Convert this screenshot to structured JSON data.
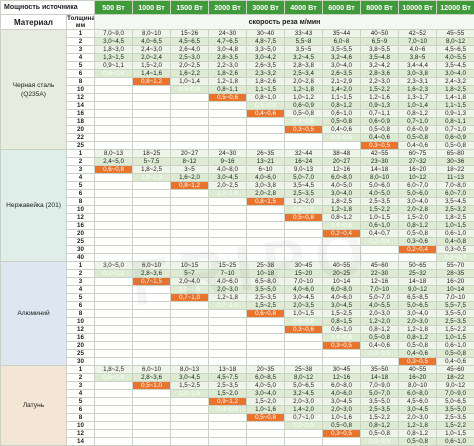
{
  "header": {
    "source_label": "Мощность источника",
    "material_label": "Материал",
    "thickness_label": "Толщина, мм",
    "speed_label": "скорость реза м/мин",
    "powers": [
      "500 Вт",
      "1000 Вт",
      "1500 Вт",
      "2000 Вт",
      "3000 Вт",
      "4000 Вт",
      "6000 Вт",
      "8000 Вт",
      "10000 Вт",
      "12000 Вт"
    ]
  },
  "groups": [
    {
      "material": "Черная сталь (Q235A)",
      "bg": "#e8ecdf",
      "rows": [
        {
          "t": "1",
          "v": [
            "7,0~9,0",
            "8,0~10",
            "15~26",
            "24~30",
            "30~40",
            "33~43",
            "35~44",
            "40~50",
            "42~52",
            "45~55"
          ],
          "h": []
        },
        {
          "t": "2",
          "v": [
            "3,0~4,5",
            "4,0~6,5",
            "4,5~6,5",
            "4,7~6,5",
            "4,8~7,5",
            "5,5~8",
            "6,0~8",
            "6,5~9",
            "7,0~10",
            "8,0~12"
          ],
          "h": []
        },
        {
          "t": "3",
          "v": [
            "1,8~3,0",
            "2,4~3,0",
            "2,6~4,0",
            "3,0~4,8",
            "3,3~5,0",
            "3,5~5",
            "3,5~5,5",
            "3,8~5,5",
            "4,0~6",
            "4,5~6,5"
          ],
          "h": []
        },
        {
          "t": "4",
          "v": [
            "1,3~1,5",
            "2,0~2,4",
            "2,5~3,0",
            "2,8~3,5",
            "3,0~4,2",
            "3,2~4,5",
            "3,2~4,6",
            "3,5~4,8",
            "3,8~5",
            "4,0~5,5"
          ],
          "h": []
        },
        {
          "t": "5",
          "v": [
            "0,9~1,1",
            "1,5~2,0",
            "2,0~2,5",
            "2,2~3,0",
            "2,6~3,5",
            "2,8~3,8",
            "3,0~4,0",
            "3,2~4,2",
            "3,4~4,4",
            "3,5~4,5"
          ],
          "h": []
        },
        {
          "t": "6",
          "v": [
            "0,6~0,8",
            "1,4~1,6",
            "1,6~2,2",
            "1,8~2,6",
            "2,3~3,2",
            "2,5~3,4",
            "2,6~3,5",
            "2,8~3,6",
            "3,0~3,8",
            "3,0~4,0"
          ],
          "h": [
            0
          ]
        },
        {
          "t": "8",
          "v": [
            "",
            "0,8~1,2",
            "1,0~1,4",
            "1,2~1,8",
            "1,8~2,6",
            "2,0~2,8",
            "2,1~2,9",
            "2,2~3,0",
            "2,3~3,1",
            "2,4~3,2"
          ],
          "h": [
            1
          ]
        },
        {
          "t": "10",
          "v": [
            "",
            "",
            "0,5~0,8",
            "0,8~1,1",
            "1,1~1,5",
            "1,2~1,8",
            "1,4~2,0",
            "1,5~2,2",
            "1,6~2,3",
            "1,8~2,5"
          ],
          "h": [
            2
          ]
        },
        {
          "t": "12",
          "v": [
            "",
            "",
            "",
            "0,5~0,6",
            "0,8~1,0",
            "1,0~1,2",
            "1,1~1,5",
            "1,2~1,6",
            "1,3~1,7",
            "1,4~1,8"
          ],
          "h": [
            3
          ]
        },
        {
          "t": "14",
          "v": [
            "",
            "",
            "",
            "",
            "0,5~0,8",
            "0,6~0,9",
            "0,8~1,2",
            "0,9~1,3",
            "1,0~1,4",
            "1,1~1,5"
          ],
          "h": [
            4
          ]
        },
        {
          "t": "16",
          "v": [
            "",
            "",
            "",
            "",
            "0,4~0,6",
            "0,5~0,8",
            "0,6~1,0",
            "0,7~1,1",
            "0,8~1,2",
            "0,9~1,3"
          ],
          "h": [
            4
          ]
        },
        {
          "t": "18",
          "v": [
            "",
            "",
            "",
            "",
            "",
            "0,4~0,6",
            "0,5~0,8",
            "0,6~0,9",
            "0,7~1,0",
            "0,8~1,1"
          ],
          "h": [
            5
          ]
        },
        {
          "t": "20",
          "v": [
            "",
            "",
            "",
            "",
            "",
            "0,3~0,5",
            "0,4~0,6",
            "0,5~0,8",
            "0,6~0,9",
            "0,7~1,0"
          ],
          "h": [
            5
          ]
        },
        {
          "t": "22",
          "v": [
            "",
            "",
            "",
            "",
            "",
            "",
            "0,3~0,5",
            "0,4~0,6",
            "0,5~0,8",
            "0,6~0,9"
          ],
          "h": [
            6
          ]
        },
        {
          "t": "25",
          "v": [
            "",
            "",
            "",
            "",
            "",
            "",
            "",
            "0,3~0,5",
            "0,4~0,6",
            "0,5~0,8"
          ],
          "h": [
            7
          ]
        }
      ]
    },
    {
      "material": "Нержавейка (201)",
      "bg": "#dfeee9",
      "rows": [
        {
          "t": "1",
          "v": [
            "8,0~13",
            "18~25",
            "20~27",
            "24~30",
            "26~35",
            "32~44",
            "38~48",
            "42~55",
            "60~75",
            "65~80"
          ],
          "h": []
        },
        {
          "t": "2",
          "v": [
            "2,4~5,0",
            "5~7,5",
            "8~12",
            "9~16",
            "13~21",
            "16~24",
            "20~27",
            "23~30",
            "27~32",
            "30~36"
          ],
          "h": []
        },
        {
          "t": "3",
          "v": [
            "0,6~0,8",
            "1,8~2,5",
            "3~5",
            "4,0~8,0",
            "6~10",
            "9,0~13",
            "12~16",
            "14~18",
            "16~20",
            "18~22"
          ],
          "h": [
            0
          ]
        },
        {
          "t": "4",
          "v": [
            "",
            "1,0~1,3",
            "1,6~2,0",
            "3,0~4,5",
            "4,0~6,0",
            "5,0~7,0",
            "6,0~8,0",
            "8,0~10",
            "10~12",
            "11~13"
          ],
          "h": [
            1
          ]
        },
        {
          "t": "5",
          "v": [
            "",
            "",
            "0,8~1,2",
            "2,0~2,5",
            "3,0~3,8",
            "3,5~4,5",
            "4,0~5,0",
            "5,0~6,0",
            "6,0~7,0",
            "7,0~8,0"
          ],
          "h": [
            2
          ]
        },
        {
          "t": "6",
          "v": [
            "",
            "",
            "",
            "1,2~1,8",
            "2,0~2,8",
            "2,5~3,5",
            "3,0~4,0",
            "4,0~5,0",
            "5,0~6,0",
            "6,0~7,0"
          ],
          "h": [
            3
          ]
        },
        {
          "t": "8",
          "v": [
            "",
            "",
            "",
            "",
            "0,8~1,5",
            "1,2~2,0",
            "1,8~2,5",
            "2,5~3,5",
            "3,0~4,0",
            "3,5~4,5"
          ],
          "h": [
            4
          ]
        },
        {
          "t": "10",
          "v": [
            "",
            "",
            "",
            "",
            "",
            "0,8~1,2",
            "1,2~1,8",
            "1,5~2,2",
            "2,0~2,8",
            "2,5~3,2"
          ],
          "h": [
            5
          ]
        },
        {
          "t": "12",
          "v": [
            "",
            "",
            "",
            "",
            "",
            "0,5~0,8",
            "0,8~1,2",
            "1,0~1,5",
            "1,5~2,0",
            "1,8~2,5"
          ],
          "h": [
            5
          ]
        },
        {
          "t": "16",
          "v": [
            "",
            "",
            "",
            "",
            "",
            "",
            "0,4~0,6",
            "0,6~1,0",
            "0,8~1,2",
            "1,0~1,5"
          ],
          "h": [
            6
          ]
        },
        {
          "t": "20",
          "v": [
            "",
            "",
            "",
            "",
            "",
            "",
            "0,2~0,4",
            "0,4~0,7",
            "0,5~0,8",
            "0,6~1,0"
          ],
          "h": [
            6
          ]
        },
        {
          "t": "25",
          "v": [
            "",
            "",
            "",
            "",
            "",
            "",
            "",
            "0,2~0,4",
            "0,3~0,6",
            "0,4~0,8"
          ],
          "h": [
            7
          ]
        },
        {
          "t": "30",
          "v": [
            "",
            "",
            "",
            "",
            "",
            "",
            "",
            "",
            "0,2~0,4",
            "0,3~0,5"
          ],
          "h": [
            8
          ]
        },
        {
          "t": "40",
          "v": [
            "",
            "",
            "",
            "",
            "",
            "",
            "",
            "",
            "",
            "0,2~0,4"
          ],
          "h": [
            9
          ]
        }
      ]
    },
    {
      "material": "Алюминий",
      "bg": "#dde6f1",
      "rows": [
        {
          "t": "1",
          "v": [
            "3,0~5,0",
            "6,0~10",
            "10~15",
            "15~25",
            "25~38",
            "30~45",
            "40~55",
            "45~60",
            "50~65",
            "55~70"
          ],
          "h": []
        },
        {
          "t": "2",
          "v": [
            "0,7~1,2",
            "2,8~3,6",
            "5~7",
            "7~10",
            "10~18",
            "15~20",
            "20~25",
            "22~30",
            "25~32",
            "28~35"
          ],
          "h": [
            0
          ]
        },
        {
          "t": "3",
          "v": [
            "",
            "0,7~1,5",
            "2,0~4,0",
            "4,0~6,0",
            "6,5~8,0",
            "7,0~10",
            "10~14",
            "12~16",
            "14~18",
            "16~20"
          ],
          "h": [
            1
          ]
        },
        {
          "t": "4",
          "v": [
            "",
            "",
            "1,0~1,5",
            "2,0~3,0",
            "3,5~5,0",
            "4,0~6,0",
            "6,0~8,0",
            "7,0~10",
            "9,0~12",
            "10~14"
          ],
          "h": [
            2
          ]
        },
        {
          "t": "5",
          "v": [
            "",
            "",
            "0,7~1,0",
            "1,2~1,8",
            "2,5~3,5",
            "3,0~4,5",
            "4,0~6,0",
            "5,0~7,0",
            "6,5~8,5",
            "7,0~10"
          ],
          "h": [
            2
          ]
        },
        {
          "t": "6",
          "v": [
            "",
            "",
            "",
            "0,7~1,0",
            "1,5~2,5",
            "2,0~3,5",
            "3,0~4,5",
            "4,0~5,5",
            "5,0~6,5",
            "5,5~7,5"
          ],
          "h": [
            3
          ]
        },
        {
          "t": "8",
          "v": [
            "",
            "",
            "",
            "",
            "0,6~0,8",
            "1,0~1,5",
            "1,5~2,5",
            "2,0~3,0",
            "3,0~4,0",
            "3,5~5,0"
          ],
          "h": [
            4
          ]
        },
        {
          "t": "10",
          "v": [
            "",
            "",
            "",
            "",
            "",
            "0,6~0,8",
            "0,8~1,5",
            "1,2~2,0",
            "2,0~3,0",
            "2,5~3,5"
          ],
          "h": [
            5
          ]
        },
        {
          "t": "12",
          "v": [
            "",
            "",
            "",
            "",
            "",
            "0,3~0,6",
            "0,6~1,0",
            "0,8~1,2",
            "1,2~1,8",
            "1,5~2,2"
          ],
          "h": [
            5
          ]
        },
        {
          "t": "16",
          "v": [
            "",
            "",
            "",
            "",
            "",
            "",
            "0,4~0,6",
            "0,5~0,8",
            "0,8~1,2",
            "1,0~1,5"
          ],
          "h": [
            6
          ]
        },
        {
          "t": "20",
          "v": [
            "",
            "",
            "",
            "",
            "",
            "",
            "0,3~0,5",
            "0,4~0,6",
            "0,5~0,8",
            "0,6~1,0"
          ],
          "h": [
            6
          ]
        },
        {
          "t": "25",
          "v": [
            "",
            "",
            "",
            "",
            "",
            "",
            "",
            "0,3~0,5",
            "0,4~0,6",
            "0,5~0,8"
          ],
          "h": [
            7
          ]
        },
        {
          "t": "30",
          "v": [
            "",
            "",
            "",
            "",
            "",
            "",
            "",
            "",
            "0,3~0,5",
            "0,4~0,6"
          ],
          "h": [
            8
          ]
        }
      ]
    },
    {
      "material": "Латунь",
      "bg": "#f3e6d4",
      "rows": [
        {
          "t": "1",
          "v": [
            "1,8~2,5",
            "6,0~10",
            "8,0~13",
            "13~18",
            "20~35",
            "25~38",
            "30~45",
            "35~50",
            "40~55",
            "45~60"
          ],
          "h": []
        },
        {
          "t": "2",
          "v": [
            "0,5~0,8",
            "2,8~3,6",
            "3,0~4,5",
            "4,5~7,5",
            "6,0~8,5",
            "8,0~12",
            "12~16",
            "14~18",
            "16~20",
            "18~22"
          ],
          "h": [
            0
          ]
        },
        {
          "t": "3",
          "v": [
            "",
            "0,5~1,0",
            "1,5~2,5",
            "2,5~3,5",
            "4,0~5,0",
            "5,0~6,5",
            "6,0~8,0",
            "7,0~9,0",
            "8,0~10",
            "9,0~12"
          ],
          "h": [
            1
          ]
        },
        {
          "t": "4",
          "v": [
            "",
            "",
            "1,0~1,6",
            "1,5~2,0",
            "3,0~4,0",
            "3,2~4,5",
            "4,0~6,0",
            "5,0~7,0",
            "6,0~8,0",
            "7,0~9,0"
          ],
          "h": [
            2
          ]
        },
        {
          "t": "5",
          "v": [
            "",
            "",
            "",
            "0,9~1,2",
            "1,5~2,0",
            "2,0~3,0",
            "3,0~4,5",
            "3,5~5,0",
            "4,5~6,0",
            "5,0~6,5"
          ],
          "h": [
            3
          ]
        },
        {
          "t": "6",
          "v": [
            "",
            "",
            "",
            "0,4~0,6",
            "1,0~1,6",
            "1,4~2,0",
            "2,0~3,0",
            "2,5~3,5",
            "3,0~4,5",
            "3,5~5,0"
          ],
          "h": [
            3
          ]
        },
        {
          "t": "8",
          "v": [
            "",
            "",
            "",
            "",
            "0,5~0,8",
            "0,7~1,0",
            "1,0~1,6",
            "1,5~2,2",
            "2,0~3,0",
            "2,5~3,5"
          ],
          "h": [
            4
          ]
        },
        {
          "t": "10",
          "v": [
            "",
            "",
            "",
            "",
            "",
            "0,2~0,5",
            "0,5~0,8",
            "0,8~1,2",
            "1,2~1,8",
            "1,5~2,2"
          ],
          "h": [
            5
          ]
        },
        {
          "t": "12",
          "v": [
            "",
            "",
            "",
            "",
            "",
            "",
            "0,3~0,5",
            "0,5~0,8",
            "0,8~1,2",
            "1,0~1,5"
          ],
          "h": [
            6
          ]
        },
        {
          "t": "14",
          "v": [
            "",
            "",
            "",
            "",
            "",
            "",
            "",
            "0,3~0,5",
            "0,5~0,8",
            "0,6~1,0"
          ],
          "h": [
            7
          ]
        }
      ]
    }
  ],
  "colors": {
    "header_green": "#3f9a3a",
    "highlight_orange": "#e8742e",
    "row_light": "#eef5e8",
    "row_dark": "#dcebd2"
  },
  "watermark": "FRIPO"
}
